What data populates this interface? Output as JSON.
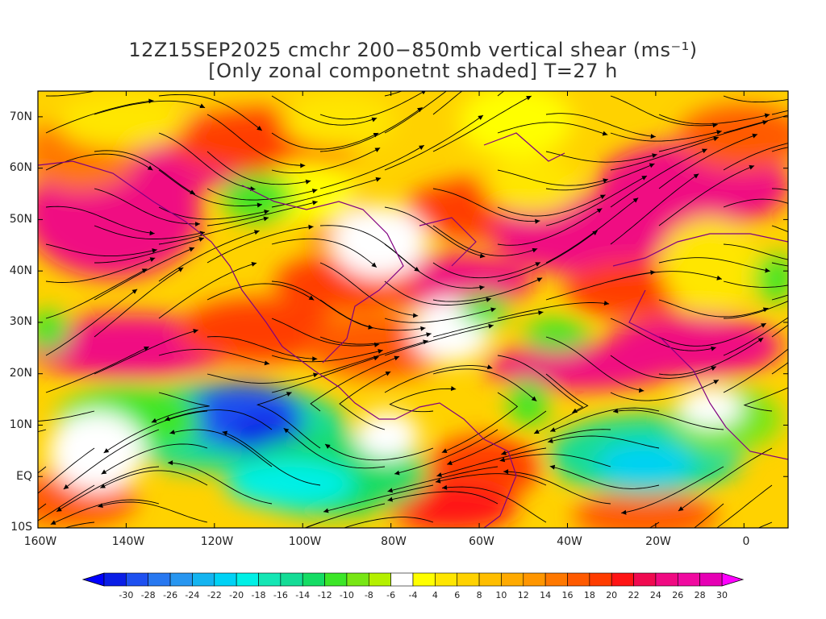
{
  "title": {
    "line1": "12Z15SEP2025 cmchr 200−850mb vertical shear (ms⁻¹)",
    "line2": "[Only zonal componetnt shaded] T=27 h"
  },
  "map": {
    "lon_range": [
      -160,
      10
    ],
    "lat_range": [
      -10,
      75
    ],
    "lat_labels": [
      "70N",
      "60N",
      "50N",
      "40N",
      "30N",
      "20N",
      "10N",
      "EQ",
      "10S"
    ],
    "lat_values": [
      70,
      60,
      50,
      40,
      30,
      20,
      10,
      0,
      -10
    ],
    "lon_labels": [
      "160W",
      "140W",
      "120W",
      "100W",
      "80W",
      "60W",
      "40W",
      "20W",
      "0"
    ],
    "lon_values": [
      -160,
      -140,
      -120,
      -100,
      -80,
      -60,
      -40,
      -20,
      0
    ],
    "layers": [
      "zonal-shear-shading",
      "shear-streamlines",
      "coastlines"
    ],
    "colors": {
      "frame": "#000000",
      "coastline": "#800080",
      "streamline": "#000000"
    }
  },
  "colorbar": {
    "labels": [
      "-30",
      "-28",
      "-26",
      "-24",
      "-22",
      "-20",
      "-18",
      "-16",
      "-14",
      "-12",
      "-10",
      "-8",
      "-6",
      "-4",
      "4",
      "6",
      "8",
      "10",
      "12",
      "14",
      "16",
      "18",
      "20",
      "22",
      "24",
      "26",
      "28",
      "30"
    ],
    "colors": [
      "#0a1ee6",
      "#1e50f0",
      "#2878f0",
      "#2896f0",
      "#14b4f0",
      "#00d2f5",
      "#00f0e6",
      "#14e6b4",
      "#14dc96",
      "#14dc64",
      "#3ce628",
      "#78e614",
      "#b4f000",
      "#ffffff",
      "#ffff00",
      "#ffe600",
      "#ffd200",
      "#ffbe00",
      "#ffaa00",
      "#ff9600",
      "#ff7800",
      "#ff5a00",
      "#ff3c00",
      "#ff1414",
      "#f00a50",
      "#f00a82",
      "#f00aa0",
      "#e600b4"
    ],
    "arrow_low_color": "#0000ff",
    "arrow_high_color": "#ff00ff"
  }
}
